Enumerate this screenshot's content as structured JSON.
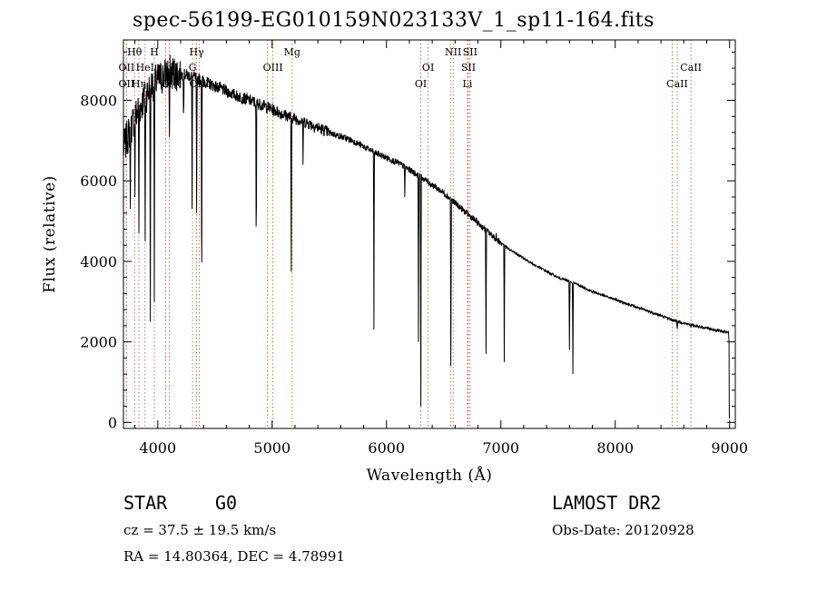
{
  "title": "spec-56199-EG010159N023133V_1_sp11-164.fits",
  "info": {
    "class_label": "STAR",
    "subclass": "G0",
    "survey": "LAMOST DR2",
    "cz": "cz = 37.5 ± 19.5 km/s",
    "obs_date": "Obs-Date: 20120928",
    "coords": "RA =   14.80364, DEC =    4.78991"
  },
  "chart_data": {
    "type": "line",
    "title": "spec-56199-EG010159N023133V_1_sp11-164.fits",
    "xlabel": "Wavelength (Å)",
    "ylabel": "Flux (relative)",
    "xlim": [
      3700,
      9050
    ],
    "ylim": [
      -150,
      9500
    ],
    "grid": false,
    "x_ticks": [
      4000,
      5000,
      6000,
      7000,
      8000,
      9000
    ],
    "y_ticks": [
      0,
      2000,
      4000,
      6000,
      8000
    ],
    "continuum": [
      [
        3700,
        6800
      ],
      [
        3800,
        7600
      ],
      [
        3950,
        8400
      ],
      [
        4100,
        8700
      ],
      [
        4300,
        8600
      ],
      [
        4500,
        8350
      ],
      [
        4700,
        8100
      ],
      [
        4900,
        7900
      ],
      [
        5100,
        7650
      ],
      [
        5300,
        7450
      ],
      [
        5500,
        7200
      ],
      [
        5700,
        7000
      ],
      [
        5900,
        6700
      ],
      [
        6100,
        6450
      ],
      [
        6300,
        6100
      ],
      [
        6500,
        5700
      ],
      [
        6700,
        5200
      ],
      [
        6900,
        4700
      ],
      [
        7000,
        4450
      ],
      [
        7100,
        4250
      ],
      [
        7300,
        3900
      ],
      [
        7500,
        3600
      ],
      [
        7650,
        3450
      ],
      [
        7800,
        3250
      ],
      [
        8000,
        3050
      ],
      [
        8200,
        2850
      ],
      [
        8400,
        2650
      ],
      [
        8550,
        2500
      ],
      [
        8700,
        2400
      ],
      [
        8950,
        2250
      ]
    ],
    "absorption_features": [
      [
        3760,
        5300
      ],
      [
        3800,
        5600
      ],
      [
        3835,
        4700
      ],
      [
        3890,
        4500
      ],
      [
        3935,
        2500
      ],
      [
        3970,
        3000
      ],
      [
        4102,
        6800
      ],
      [
        4226,
        7400
      ],
      [
        4300,
        5300
      ],
      [
        4340,
        5200
      ],
      [
        4384,
        2500
      ],
      [
        4861,
        3800
      ],
      [
        5167,
        3200
      ],
      [
        5270,
        6400
      ],
      [
        5890,
        2300
      ],
      [
        6160,
        5600
      ],
      [
        6280,
        2000
      ],
      [
        6300,
        400
      ],
      [
        6563,
        800
      ],
      [
        6870,
        1700
      ],
      [
        6960,
        4700
      ],
      [
        7030,
        1500
      ],
      [
        7600,
        1800
      ],
      [
        7630,
        1200
      ],
      [
        8498,
        2500
      ],
      [
        8542,
        2300
      ],
      [
        8662,
        2350
      ]
    ],
    "emission_lines": [
      {
        "name": "Hθ",
        "wl": 3797,
        "row": 0
      },
      {
        "name": "H",
        "wl": 3970,
        "row": 0
      },
      {
        "name": "Hγ",
        "wl": 4340,
        "row": 0
      },
      {
        "name": "Mg",
        "wl": 5175,
        "row": 0
      },
      {
        "name": "NII",
        "wl": 6583,
        "row": 0
      },
      {
        "name": "SII",
        "wl": 6731,
        "row": 0
      },
      {
        "name": "OII",
        "wl": 3727,
        "row": 1
      },
      {
        "name": "HeI",
        "wl": 3889,
        "row": 1
      },
      {
        "name": "G",
        "wl": 4304,
        "row": 1
      },
      {
        "name": "OIII",
        "wl": 5007,
        "row": 1
      },
      {
        "name": "OI",
        "wl": 6364,
        "row": 1
      },
      {
        "name": "SII",
        "wl": 6716,
        "row": 1
      },
      {
        "name": "CaII",
        "wl": 8662,
        "row": 1
      },
      {
        "name": "OII",
        "wl": 3727,
        "row": 2
      },
      {
        "name": "Hη",
        "wl": 3835,
        "row": 2
      },
      {
        "name": "O",
        "wl": 4068,
        "row": 2
      },
      {
        "name": "OIII",
        "wl": 4363,
        "row": 2
      },
      {
        "name": "OI",
        "wl": 6300,
        "row": 2
      },
      {
        "name": "Li",
        "wl": 6708,
        "row": 2
      },
      {
        "name": "CaII",
        "wl": 8542,
        "row": 2
      }
    ],
    "marker_lines": [
      3727,
      3797,
      3835,
      3889,
      3970,
      4068,
      4102,
      4304,
      4340,
      4363,
      4959,
      5007,
      5175,
      6300,
      6364,
      6563,
      6583,
      6708,
      6716,
      6731,
      8498,
      8542,
      8662
    ]
  },
  "colors": {
    "spectrum": "#000000",
    "marker": "#d04a2a",
    "axes": "#000000"
  }
}
